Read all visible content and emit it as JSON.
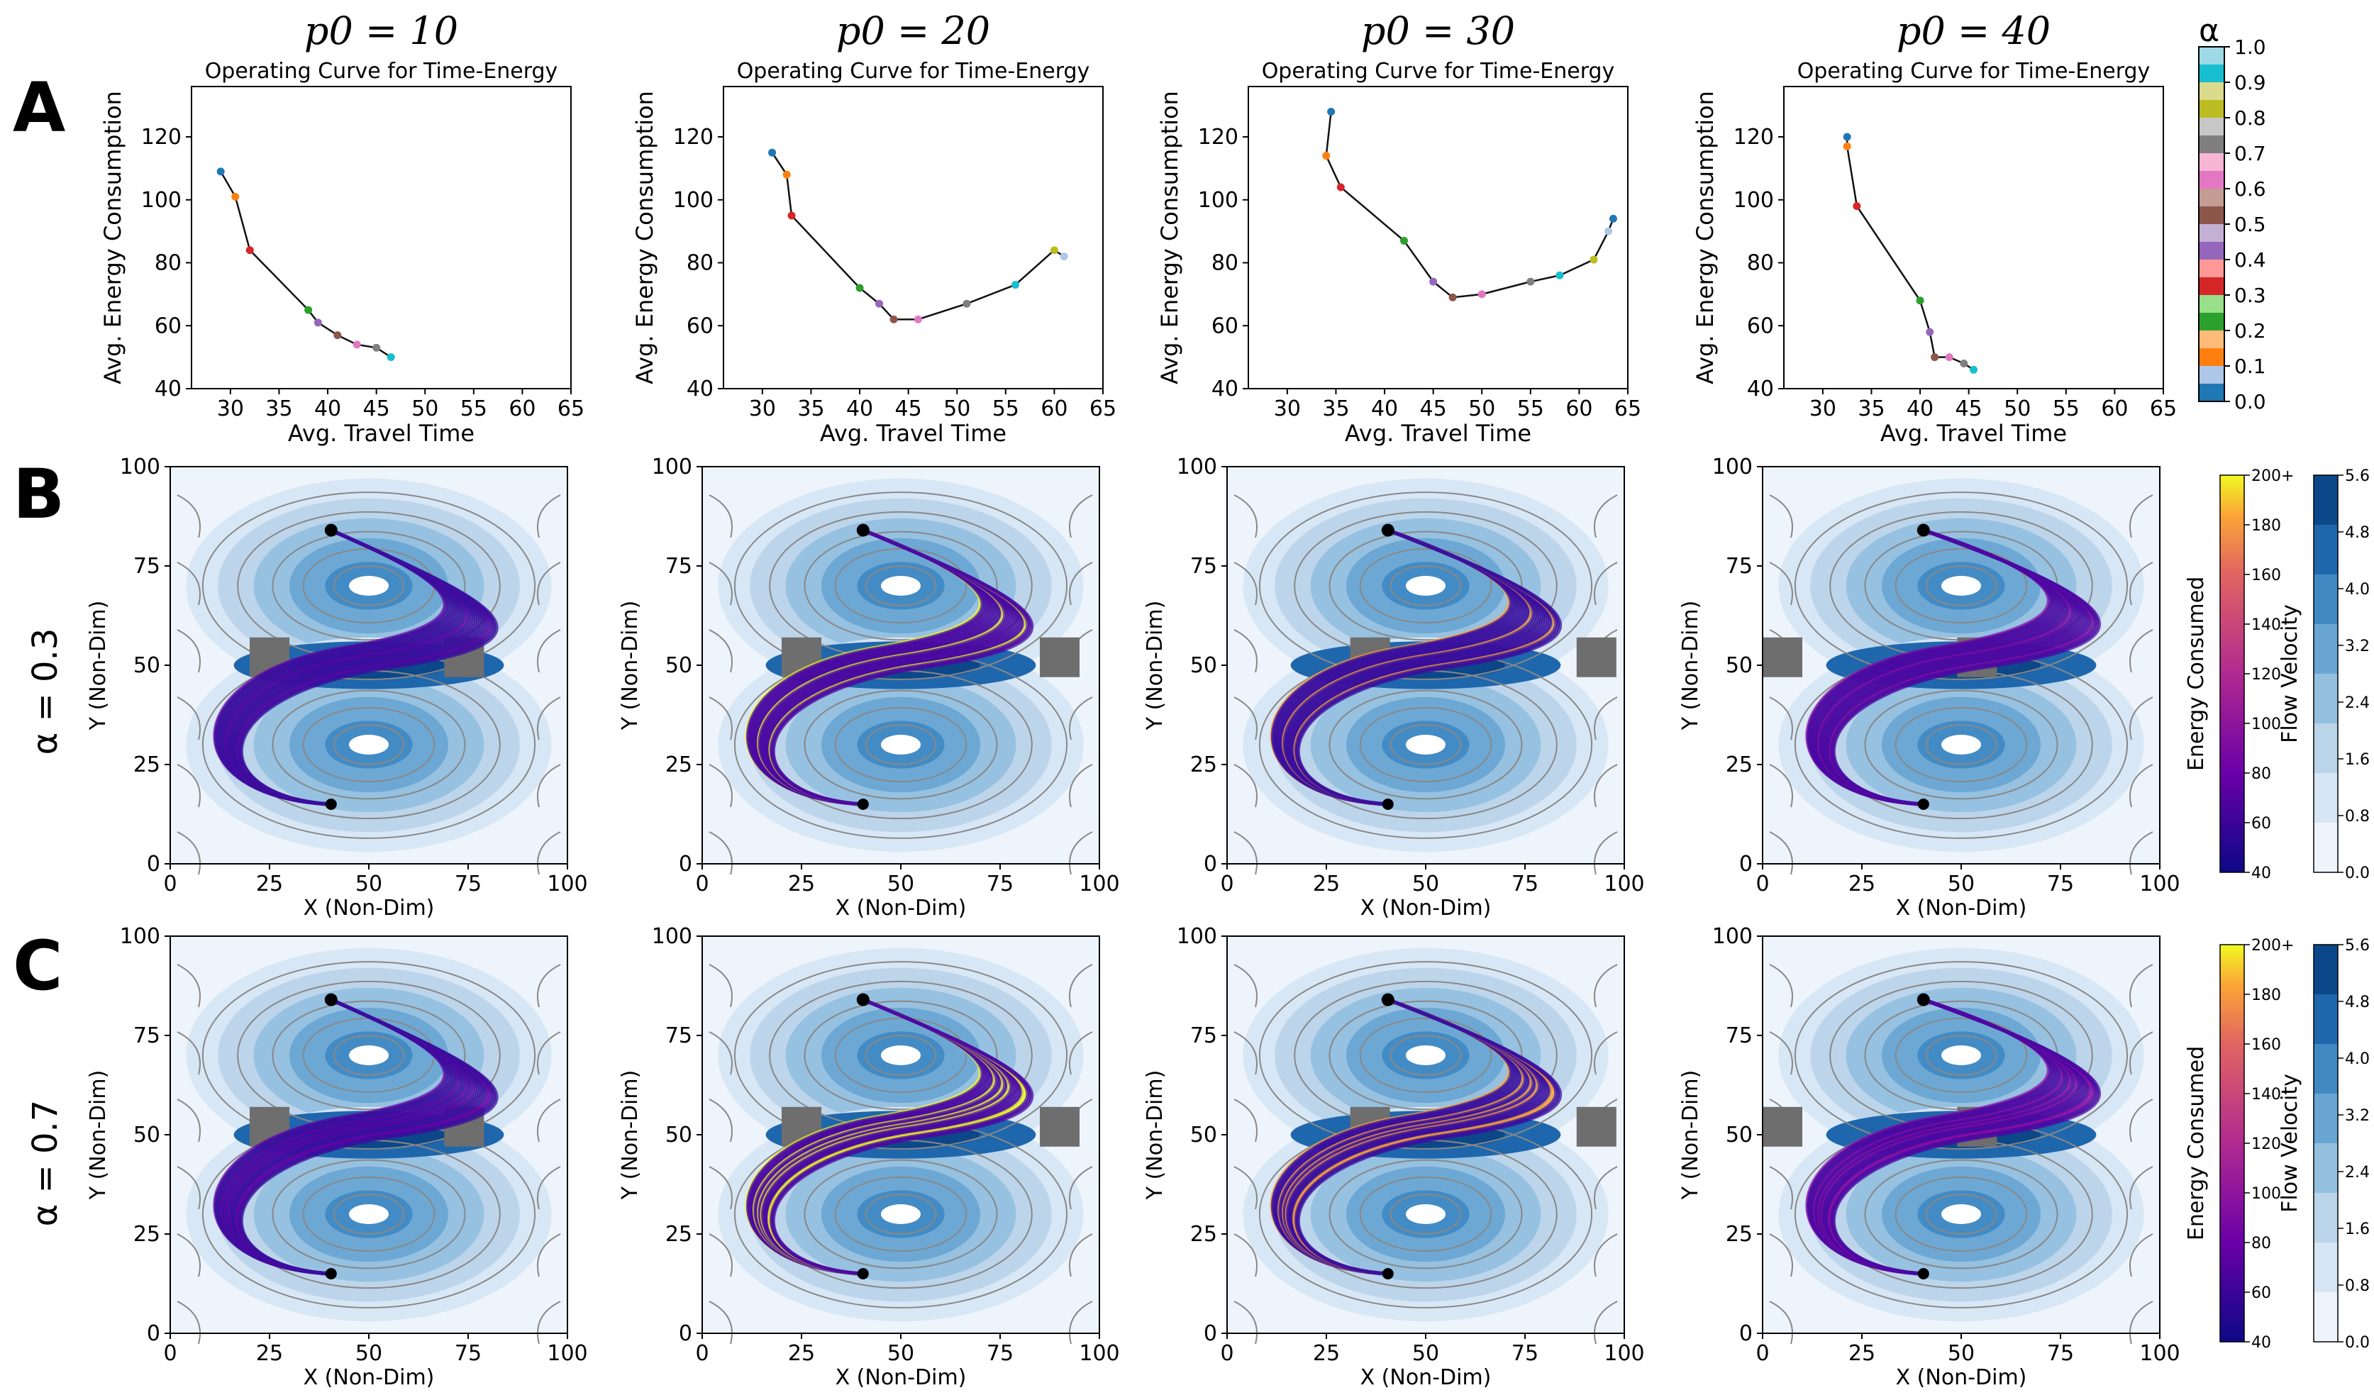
{
  "figure": {
    "panel_letters": [
      "A",
      "B",
      "C"
    ],
    "row_labels": [
      "α = 0.3",
      "α = 0.7"
    ]
  },
  "chart_data": [
    {
      "type": "line",
      "panel": "A",
      "title": "Operating Curve for Time-Energy",
      "column_titles": [
        "p0 = 10",
        "p0 = 20",
        "p0 = 30",
        "p0 = 40"
      ],
      "xlabel": "Avg. Travel Time",
      "ylabel": "Avg. Energy Consumption",
      "xlim": [
        26,
        65
      ],
      "ylim": [
        40,
        136
      ],
      "xticks": [
        30,
        35,
        40,
        45,
        50,
        55,
        60,
        65
      ],
      "yticks": [
        40,
        60,
        80,
        100,
        120
      ],
      "series": [
        {
          "name": "p0 = 10",
          "x": [
            29,
            30.5,
            32,
            38,
            39,
            41,
            43,
            45,
            46.5
          ],
          "y": [
            109,
            101,
            84,
            65,
            61,
            57,
            54,
            53,
            50
          ]
        },
        {
          "name": "p0 = 20",
          "x": [
            31,
            32.5,
            33,
            40,
            42,
            43.5,
            46,
            51,
            56,
            60,
            61
          ],
          "y": [
            115,
            108,
            95,
            72,
            67,
            62,
            62,
            67,
            73,
            84,
            82
          ]
        },
        {
          "name": "p0 = 30",
          "x": [
            34.5,
            34,
            35.5,
            42,
            45,
            47,
            50,
            55,
            58,
            61.5,
            63,
            63.5
          ],
          "y": [
            128,
            114,
            104,
            87,
            74,
            69,
            70,
            74,
            76,
            81,
            90,
            94
          ]
        },
        {
          "name": "p0 = 40",
          "x": [
            32.5,
            32.5,
            33.5,
            40,
            41,
            41.5,
            43,
            44.5,
            45.5
          ],
          "y": [
            120,
            117,
            98,
            68,
            58,
            50,
            50,
            48,
            46
          ]
        }
      ],
      "alpha_colorbar": {
        "label": "α",
        "ticks": [
          "1.0",
          "0.9",
          "0.8",
          "0.7",
          "0.6",
          "0.5",
          "0.4",
          "0.3",
          "0.2",
          "0.1",
          "0.0"
        ],
        "colors": [
          "#9edae5",
          "#17becf",
          "#dbdb8d",
          "#bcbd22",
          "#c7c7c7",
          "#7f7f7f",
          "#f7b6d2",
          "#e377c2",
          "#c49c94",
          "#8c564b",
          "#c5b0d5",
          "#9467bd",
          "#ff9896",
          "#d62728",
          "#98df8a",
          "#2ca02c",
          "#ffbb78",
          "#ff7f0e",
          "#aec7e8",
          "#1f77b4"
        ]
      }
    },
    {
      "type": "heatmap",
      "panel": "B",
      "alpha": 0.3,
      "xlabel": "X (Non-Dim)",
      "ylabel": "Y (Non-Dim)",
      "xlim": [
        0,
        100
      ],
      "ylim": [
        0,
        100
      ],
      "xticks": [
        0,
        25,
        50,
        75,
        100
      ],
      "yticks": [
        0,
        25,
        50,
        75,
        100
      ],
      "columns": [
        "p0 = 10",
        "p0 = 20",
        "p0 = 30",
        "p0 = 40"
      ]
    },
    {
      "type": "heatmap",
      "panel": "C",
      "alpha": 0.7,
      "xlabel": "X (Non-Dim)",
      "ylabel": "Y (Non-Dim)",
      "xlim": [
        0,
        100
      ],
      "ylim": [
        0,
        100
      ],
      "xticks": [
        0,
        25,
        50,
        75,
        100
      ],
      "yticks": [
        0,
        25,
        50,
        75,
        100
      ],
      "columns": [
        "p0 = 10",
        "p0 = 20",
        "p0 = 30",
        "p0 = 40"
      ]
    }
  ],
  "colorbars": {
    "energy": {
      "label": "Energy Consumed",
      "ticks": [
        "200+",
        "180",
        "160",
        "140",
        "120",
        "100",
        "80",
        "60",
        "40"
      ]
    },
    "flow": {
      "label": "Flow Velocity",
      "ticks": [
        "5.6",
        "4.8",
        "4.0",
        "3.2",
        "2.4",
        "1.6",
        "0.8",
        "0.0"
      ]
    }
  },
  "colors": {
    "curve": "#111111",
    "flow_levels": [
      "#eef4fb",
      "#d6e6f4",
      "#bad4ea",
      "#94c0e0",
      "#6aa6d3",
      "#4189c3",
      "#1f67ad",
      "#0c4889"
    ],
    "obstacle": "#6e6e6e",
    "streamline": "#888888"
  }
}
